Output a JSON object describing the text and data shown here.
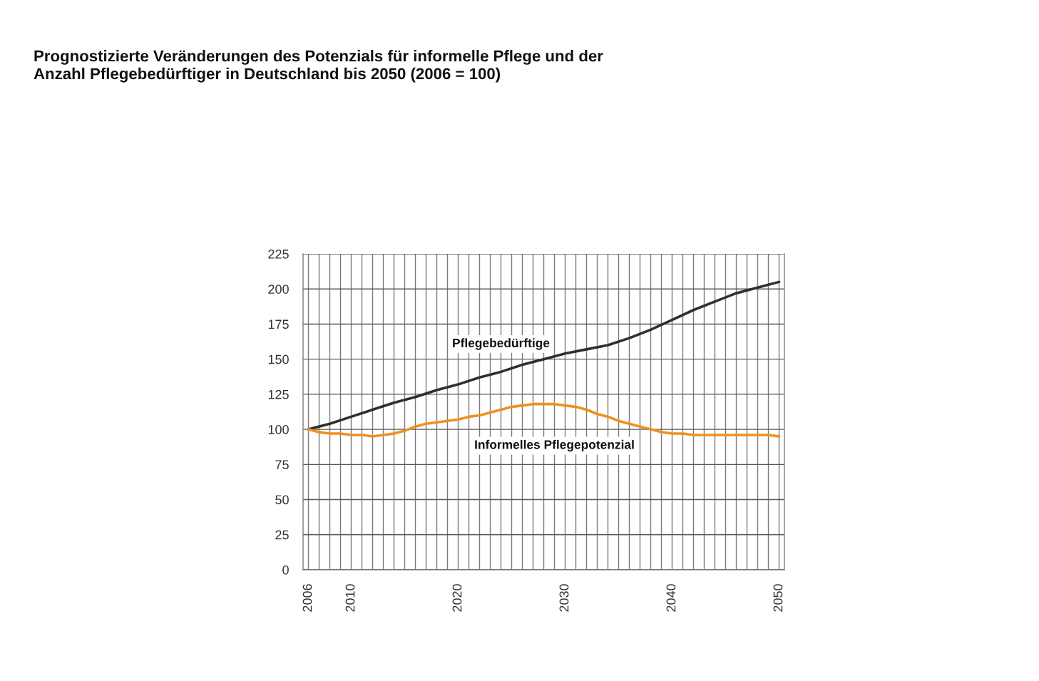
{
  "chart_data": {
    "type": "line",
    "title": "Prognostizierte Veränderungen des Potenzials für informelle Pflege und der\nAnzahl Pflegebedürftiger in Deutschland bis 2050 (2006 = 100)",
    "series": [
      {
        "name": "Pflegebedürftige",
        "color": "#2f2f2f",
        "x": [
          2006,
          2008,
          2010,
          2012,
          2014,
          2016,
          2018,
          2020,
          2022,
          2024,
          2026,
          2028,
          2030,
          2032,
          2034,
          2036,
          2038,
          2040,
          2042,
          2044,
          2046,
          2048,
          2050
        ],
        "values": [
          100,
          104,
          109,
          114,
          119,
          123,
          128,
          132,
          137,
          141,
          146,
          150,
          154,
          157,
          160,
          165,
          171,
          178,
          185,
          191,
          197,
          201,
          205
        ]
      },
      {
        "name": "Informelles Pflegepotenzial",
        "color": "#f0901e",
        "x": [
          2006,
          2007,
          2008,
          2009,
          2010,
          2011,
          2012,
          2013,
          2014,
          2015,
          2016,
          2017,
          2018,
          2019,
          2020,
          2021,
          2022,
          2023,
          2024,
          2025,
          2026,
          2027,
          2028,
          2029,
          2030,
          2031,
          2032,
          2033,
          2034,
          2035,
          2036,
          2037,
          2038,
          2039,
          2040,
          2041,
          2042,
          2043,
          2044,
          2045,
          2046,
          2047,
          2048,
          2049,
          2050
        ],
        "values": [
          100,
          98,
          97,
          97,
          96,
          96,
          95,
          96,
          97,
          99,
          102,
          104,
          105,
          106,
          107,
          109,
          110,
          112,
          114,
          116,
          117,
          118,
          118,
          118,
          117,
          116,
          114,
          111,
          109,
          106,
          104,
          102,
          100,
          98,
          97,
          97,
          96,
          96,
          96,
          96,
          96,
          96,
          96,
          96,
          95
        ]
      }
    ],
    "xlim": [
      2005.5,
      2050.5
    ],
    "xticks": [
      2006,
      {
        "value": 2007,
        "label": null
      },
      {
        "value": 2008,
        "label": null
      },
      {
        "value": 2009,
        "label": null
      },
      2010,
      {
        "value": 2011,
        "label": null
      },
      {
        "value": 2012,
        "label": null
      },
      {
        "value": 2013,
        "label": null
      },
      {
        "value": 2014,
        "label": null
      },
      {
        "value": 2015,
        "label": null
      },
      {
        "value": 2016,
        "label": null
      },
      {
        "value": 2017,
        "label": null
      },
      {
        "value": 2018,
        "label": null
      },
      {
        "value": 2019,
        "label": null
      },
      2020,
      {
        "value": 2021,
        "label": null
      },
      {
        "value": 2022,
        "label": null
      },
      {
        "value": 2023,
        "label": null
      },
      {
        "value": 2024,
        "label": null
      },
      {
        "value": 2025,
        "label": null
      },
      {
        "value": 2026,
        "label": null
      },
      {
        "value": 2027,
        "label": null
      },
      {
        "value": 2028,
        "label": null
      },
      {
        "value": 2029,
        "label": null
      },
      2030,
      {
        "value": 2031,
        "label": null
      },
      {
        "value": 2032,
        "label": null
      },
      {
        "value": 2033,
        "label": null
      },
      {
        "value": 2034,
        "label": null
      },
      {
        "value": 2035,
        "label": null
      },
      {
        "value": 2036,
        "label": null
      },
      {
        "value": 2037,
        "label": null
      },
      {
        "value": 2038,
        "label": null
      },
      {
        "value": 2039,
        "label": null
      },
      2040,
      {
        "value": 2041,
        "label": null
      },
      {
        "value": 2042,
        "label": null
      },
      {
        "value": 2043,
        "label": null
      },
      {
        "value": 2044,
        "label": null
      },
      {
        "value": 2045,
        "label": null
      },
      {
        "value": 2046,
        "label": null
      },
      {
        "value": 2047,
        "label": null
      },
      {
        "value": 2048,
        "label": null
      },
      {
        "value": 2049,
        "label": null
      },
      2050
    ],
    "ylim": [
      0,
      225
    ],
    "yticks": [
      0,
      25,
      50,
      75,
      100,
      125,
      150,
      175,
      200,
      225
    ],
    "grid": true
  }
}
